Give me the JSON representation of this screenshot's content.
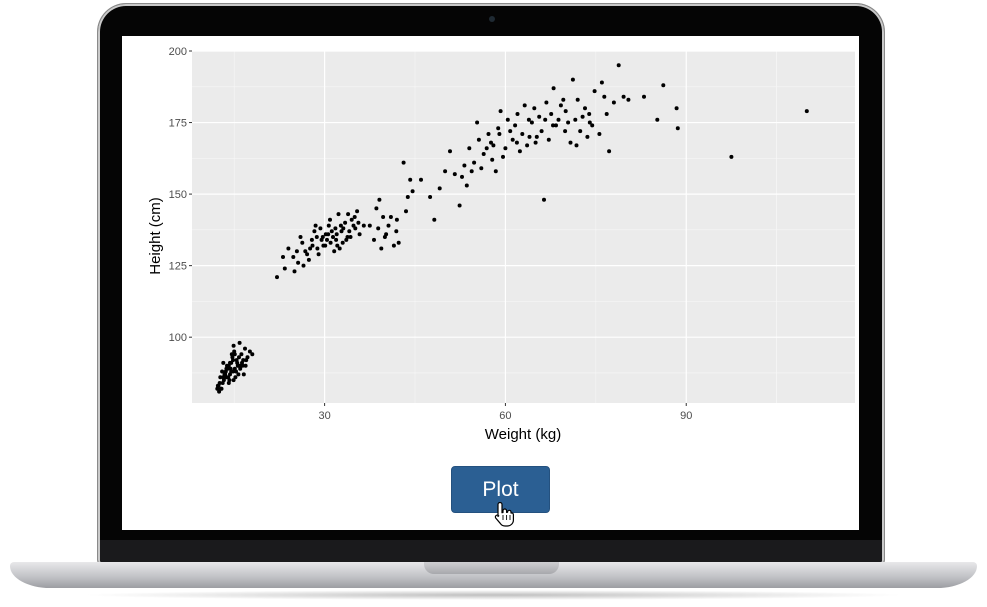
{
  "ui": {
    "plot_button_label": "Plot"
  },
  "chart_data": {
    "type": "scatter",
    "title": "",
    "xlabel": "Weight (kg)",
    "ylabel": "Height (cm)",
    "xlim": [
      8,
      118
    ],
    "ylim": [
      77,
      200
    ],
    "xticks": [
      30,
      60,
      90
    ],
    "yticks": [
      100,
      125,
      150,
      175,
      200
    ],
    "grid": true,
    "legend": "none",
    "panel_color": "#ebebeb",
    "point_color": "#000000",
    "points": [
      [
        13.2,
        91
      ],
      [
        14.5,
        88
      ],
      [
        12.6,
        84
      ],
      [
        15.8,
        93
      ],
      [
        14.1,
        90
      ],
      [
        13.7,
        86
      ],
      [
        16.2,
        94
      ],
      [
        12.9,
        82
      ],
      [
        15.1,
        89
      ],
      [
        14.8,
        92
      ],
      [
        13.4,
        87
      ],
      [
        16.8,
        96
      ],
      [
        12.3,
        83
      ],
      [
        15.5,
        91
      ],
      [
        14.2,
        85
      ],
      [
        13.9,
        89
      ],
      [
        16.1,
        90
      ],
      [
        14.6,
        94
      ],
      [
        12.7,
        86
      ],
      [
        15.3,
        88
      ],
      [
        14.9,
        97
      ],
      [
        13.1,
        84
      ],
      [
        17.2,
        93
      ],
      [
        15.7,
        87
      ],
      [
        14.3,
        91
      ],
      [
        12.5,
        81
      ],
      [
        16.5,
        92
      ],
      [
        13.6,
        88
      ],
      [
        15.0,
        95
      ],
      [
        14.0,
        86
      ],
      [
        18.0,
        94
      ],
      [
        16.9,
        90
      ],
      [
        13.3,
        85
      ],
      [
        15.9,
        98
      ],
      [
        14.4,
        89
      ],
      [
        12.8,
        82
      ],
      [
        16.3,
        91
      ],
      [
        13.8,
        90
      ],
      [
        15.2,
        86
      ],
      [
        14.7,
        93
      ],
      [
        13.5,
        87
      ],
      [
        17.6,
        95
      ],
      [
        15.6,
        90
      ],
      [
        14.1,
        84
      ],
      [
        12.4,
        83
      ],
      [
        16.0,
        89
      ],
      [
        13.0,
        88
      ],
      [
        15.4,
        92
      ],
      [
        14.5,
        91
      ],
      [
        16.6,
        87
      ],
      [
        13.2,
        86
      ],
      [
        15.8,
        90
      ],
      [
        14.8,
        88
      ],
      [
        12.2,
        82
      ],
      [
        17.0,
        92
      ],
      [
        14.9,
        85
      ],
      [
        13.7,
        89
      ],
      [
        15.1,
        94
      ],
      [
        16.4,
        90
      ],
      [
        14.3,
        87
      ],
      [
        22.1,
        121
      ],
      [
        23.4,
        124
      ],
      [
        24.8,
        128
      ],
      [
        25.6,
        126
      ],
      [
        26.3,
        133
      ],
      [
        27.1,
        129
      ],
      [
        28.0,
        132
      ],
      [
        28.7,
        135
      ],
      [
        29.5,
        134
      ],
      [
        30.2,
        136
      ],
      [
        31.0,
        133
      ],
      [
        31.8,
        138
      ],
      [
        32.5,
        131
      ],
      [
        33.4,
        140
      ],
      [
        34.1,
        137
      ],
      [
        35.0,
        142
      ],
      [
        35.8,
        136
      ],
      [
        36.5,
        139
      ],
      [
        26.8,
        130
      ],
      [
        27.9,
        134
      ],
      [
        29.0,
        129
      ],
      [
        30.7,
        139
      ],
      [
        31.4,
        135
      ],
      [
        32.8,
        137
      ],
      [
        33.6,
        134
      ],
      [
        34.8,
        139
      ],
      [
        24.0,
        131
      ],
      [
        25.0,
        123
      ],
      [
        27.4,
        127
      ],
      [
        28.3,
        137
      ],
      [
        29.8,
        132
      ],
      [
        30.9,
        141
      ],
      [
        32.0,
        136
      ],
      [
        33.1,
        138
      ],
      [
        34.5,
        141
      ],
      [
        35.4,
        144
      ],
      [
        23.1,
        128
      ],
      [
        26.0,
        135
      ],
      [
        28.8,
        131
      ],
      [
        30.4,
        134
      ],
      [
        31.6,
        130
      ],
      [
        32.3,
        143
      ],
      [
        33.8,
        135
      ],
      [
        35.1,
        138
      ],
      [
        29.3,
        138
      ],
      [
        30.1,
        132
      ],
      [
        31.2,
        137
      ],
      [
        32.7,
        139
      ],
      [
        27.6,
        131
      ],
      [
        26.5,
        125
      ],
      [
        34.3,
        135
      ],
      [
        33.0,
        133
      ],
      [
        31.9,
        134
      ],
      [
        28.5,
        139
      ],
      [
        30.6,
        136
      ],
      [
        25.4,
        130
      ],
      [
        29.7,
        135
      ],
      [
        32.1,
        132
      ],
      [
        35.6,
        140
      ],
      [
        33.9,
        143
      ],
      [
        38.6,
        145
      ],
      [
        39.4,
        131
      ],
      [
        40.2,
        136
      ],
      [
        41.0,
        142
      ],
      [
        42.3,
        133
      ],
      [
        43.1,
        161
      ],
      [
        43.8,
        149
      ],
      [
        38.9,
        138
      ],
      [
        40.6,
        139
      ],
      [
        44.6,
        151
      ],
      [
        39.7,
        142
      ],
      [
        42.0,
        141
      ],
      [
        41.5,
        132
      ],
      [
        43.5,
        144
      ],
      [
        40.0,
        135
      ],
      [
        37.5,
        139
      ],
      [
        44.2,
        155
      ],
      [
        39.1,
        148
      ],
      [
        41.9,
        137
      ],
      [
        38.2,
        134
      ],
      [
        46.0,
        155
      ],
      [
        47.5,
        149
      ],
      [
        48.2,
        141
      ],
      [
        49.1,
        152
      ],
      [
        50.0,
        158
      ],
      [
        50.8,
        165
      ],
      [
        51.6,
        157
      ],
      [
        52.4,
        146
      ],
      [
        53.2,
        160
      ],
      [
        54.0,
        166
      ],
      [
        54.8,
        161
      ],
      [
        55.6,
        169
      ],
      [
        56.4,
        164
      ],
      [
        57.2,
        171
      ],
      [
        58.0,
        167
      ],
      [
        58.8,
        173
      ],
      [
        59.6,
        163
      ],
      [
        60.4,
        176
      ],
      [
        61.2,
        169
      ],
      [
        62.0,
        178
      ],
      [
        62.8,
        171
      ],
      [
        63.6,
        167
      ],
      [
        64.4,
        175
      ],
      [
        65.2,
        170
      ],
      [
        66.0,
        172
      ],
      [
        66.8,
        182
      ],
      [
        67.6,
        178
      ],
      [
        68.4,
        174
      ],
      [
        69.2,
        181
      ],
      [
        70.0,
        179
      ],
      [
        70.8,
        168
      ],
      [
        71.6,
        176
      ],
      [
        72.4,
        172
      ],
      [
        73.2,
        180
      ],
      [
        74.0,
        175
      ],
      [
        74.8,
        186
      ],
      [
        75.6,
        171
      ],
      [
        76.4,
        184
      ],
      [
        77.2,
        165
      ],
      [
        78.0,
        182
      ],
      [
        55.3,
        175
      ],
      [
        56.0,
        159
      ],
      [
        57.6,
        168
      ],
      [
        58.4,
        158
      ],
      [
        59.2,
        179
      ],
      [
        60.0,
        166
      ],
      [
        61.6,
        174
      ],
      [
        62.4,
        165
      ],
      [
        63.2,
        181
      ],
      [
        64.0,
        170
      ],
      [
        65.6,
        177
      ],
      [
        66.4,
        148
      ],
      [
        67.2,
        169
      ],
      [
        68.0,
        187
      ],
      [
        68.8,
        176
      ],
      [
        69.6,
        183
      ],
      [
        70.4,
        175
      ],
      [
        71.2,
        190
      ],
      [
        72.0,
        183
      ],
      [
        72.8,
        177
      ],
      [
        73.6,
        170
      ],
      [
        74.4,
        174
      ],
      [
        76.0,
        189
      ],
      [
        76.8,
        178
      ],
      [
        78.8,
        195
      ],
      [
        79.6,
        184
      ],
      [
        80.4,
        183
      ],
      [
        83.0,
        184
      ],
      [
        85.2,
        176
      ],
      [
        86.2,
        188
      ],
      [
        88.4,
        180
      ],
      [
        88.6,
        173
      ],
      [
        97.5,
        163
      ],
      [
        110.0,
        179
      ],
      [
        52.8,
        156
      ],
      [
        53.6,
        153
      ],
      [
        54.4,
        158
      ],
      [
        57.8,
        162
      ],
      [
        60.8,
        172
      ],
      [
        63.9,
        176
      ],
      [
        65.0,
        168
      ],
      [
        67.9,
        174
      ],
      [
        69.9,
        172
      ],
      [
        71.8,
        167
      ],
      [
        73.9,
        178
      ],
      [
        64.8,
        180
      ],
      [
        56.9,
        166
      ],
      [
        59.0,
        171
      ],
      [
        61.9,
        168
      ],
      [
        66.6,
        176
      ]
    ]
  }
}
